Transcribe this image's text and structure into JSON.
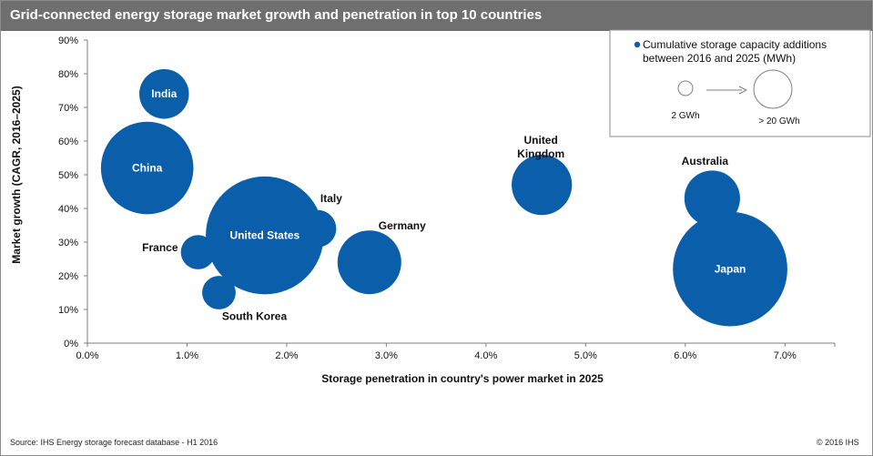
{
  "header": {
    "title": "Grid-connected energy storage market growth and penetration in top 10 countries"
  },
  "footer": {
    "source": "Source: IHS Energy storage forecast database - H1 2016",
    "copyright": "© 2016 IHS"
  },
  "colors": {
    "bubble": "#0a5eaa",
    "title_bar": "#6f6f6f"
  },
  "chart_data": {
    "type": "scatter",
    "subtype": "bubble",
    "xlabel": "Storage penetration in country's  power market in 2025",
    "ylabel": "Market growth (CAGR, 2016–2025)",
    "xlim": [
      0.0,
      7.5
    ],
    "ylim": [
      0,
      90
    ],
    "x_ticks": [
      "0.0%",
      "1.0%",
      "2.0%",
      "3.0%",
      "4.0%",
      "5.0%",
      "6.0%",
      "7.0%"
    ],
    "y_ticks": [
      "0%",
      "10%",
      "20%",
      "30%",
      "40%",
      "50%",
      "60%",
      "70%",
      "80%",
      "90%"
    ],
    "grid": false,
    "legend": {
      "position": "top-right",
      "title": "Cumulative storage capacity additions between 2016 and 2025 (MWh)",
      "small_label": "2 GWh",
      "large_label": "> 20 GWh"
    },
    "points": [
      {
        "name": "India",
        "x": 0.77,
        "y": 74,
        "size": 4.6
      },
      {
        "name": "China",
        "x": 0.6,
        "y": 52,
        "size": 16
      },
      {
        "name": "United States",
        "x": 1.78,
        "y": 32,
        "size": 26
      },
      {
        "name": "Italy",
        "x": 2.31,
        "y": 34,
        "size": 2.6
      },
      {
        "name": "France",
        "x": 1.11,
        "y": 27,
        "size": 2.2
      },
      {
        "name": "South Korea",
        "x": 1.32,
        "y": 15,
        "size": 2.1
      },
      {
        "name": "Germany",
        "x": 2.83,
        "y": 24,
        "size": 7.6
      },
      {
        "name": "United Kingdom",
        "x": 4.56,
        "y": 47,
        "size": 6.8
      },
      {
        "name": "Australia",
        "x": 6.27,
        "y": 43,
        "size": 5.8
      },
      {
        "name": "Japan",
        "x": 6.45,
        "y": 22,
        "size": 24.5
      }
    ]
  }
}
